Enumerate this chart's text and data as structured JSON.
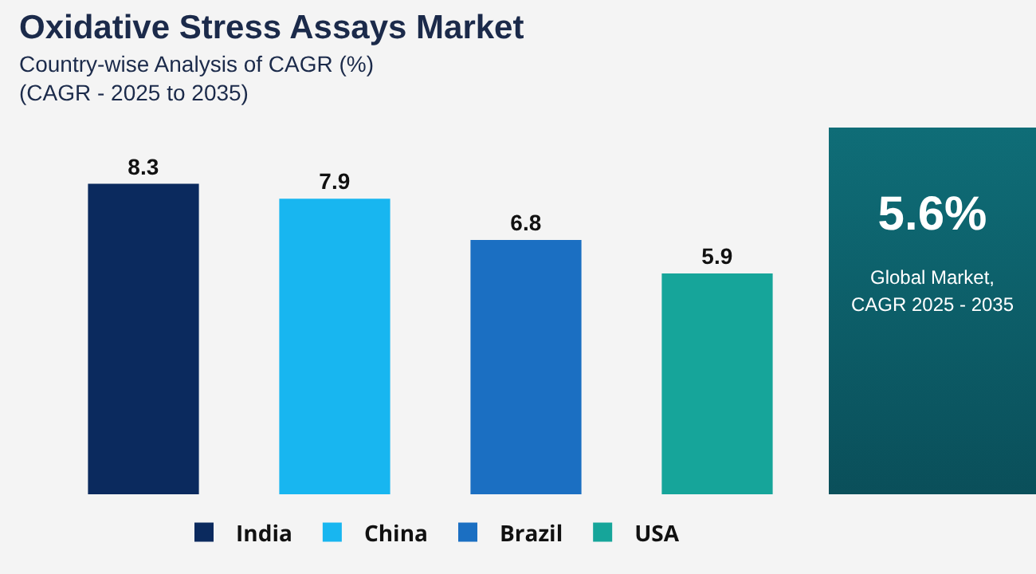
{
  "chart_data": [
    {
      "type": "bar",
      "title": "Oxidative Stress Assays Market",
      "subtitle": "Country-wise Analysis of CAGR (%)",
      "annotations": [
        "(CAGR - 2025 to 2035)"
      ],
      "categories": [
        null,
        null,
        null,
        null
      ],
      "stacked": true,
      "data_labels": true,
      "legend": "bottom",
      "series": [
        {
          "name": "India",
          "color": "#0b2a5e",
          "values": [
            8.3,
            null,
            null,
            null
          ]
        },
        {
          "name": "China",
          "color": "#18b6f0",
          "values": [
            null,
            7.9,
            null,
            null
          ]
        },
        {
          "name": "Brazil",
          "color": "#1b6fc2",
          "values": [
            null,
            null,
            6.8,
            null
          ]
        },
        {
          "name": "USA",
          "color": "#16a59a",
          "values": [
            null,
            null,
            null,
            5.9
          ]
        }
      ]
    },
    {
      "type": "other",
      "title": "5.6%",
      "subtitle": "Global Market, CAGR 2025 - 2035"
    }
  ]
}
